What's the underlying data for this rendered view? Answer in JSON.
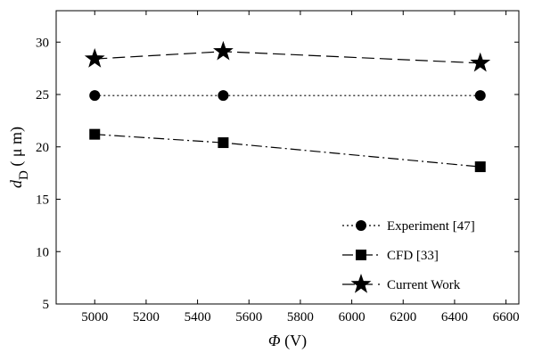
{
  "chart_data": {
    "type": "line",
    "title": "",
    "xlabel_symbol": "Φ",
    "xlabel_unit": " (V)",
    "ylabel_symbol": "d",
    "ylabel_subscript": "D",
    "ylabel_unit": " ( μ m)",
    "xlim": [
      4850,
      6650
    ],
    "ylim": [
      5,
      33
    ],
    "xticks": [
      5000,
      5200,
      5400,
      5600,
      5800,
      6000,
      6200,
      6400,
      6600
    ],
    "yticks": [
      5,
      10,
      15,
      20,
      25,
      30
    ],
    "grid": false,
    "legend_position": "bottom-right",
    "x": [
      5000,
      5500,
      6500
    ],
    "series": [
      {
        "name": "Experiment [47]",
        "values": [
          24.9,
          24.9,
          24.9
        ],
        "marker": "circle",
        "dash": "dotted",
        "color": "#000000"
      },
      {
        "name": "CFD [33]",
        "values": [
          21.2,
          20.4,
          18.1
        ],
        "marker": "square",
        "dash": "dashdot",
        "color": "#000000"
      },
      {
        "name": "Current Work",
        "values": [
          28.4,
          29.1,
          28.0
        ],
        "marker": "star",
        "dash": "dashed",
        "color": "#000000"
      }
    ]
  }
}
